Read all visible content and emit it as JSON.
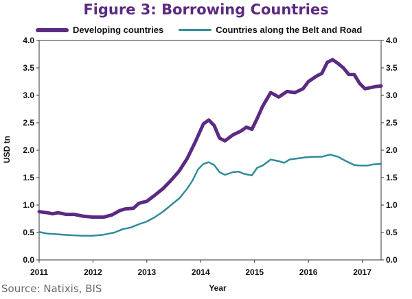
{
  "chart_data": {
    "type": "line",
    "title": "Figure 3: Borrowing Countries",
    "xlabel": "Year",
    "ylabel": "USD tn",
    "xlim": [
      2011,
      2017.35
    ],
    "ylim": [
      0,
      4
    ],
    "x_ticks": [
      "2011",
      "2012",
      "2013",
      "2014",
      "2015",
      "2016",
      "2017"
    ],
    "y_ticks": [
      "0.0",
      "0.5",
      "1.0",
      "1.5",
      "2.0",
      "2.5",
      "3.0",
      "3.5",
      "4.0"
    ],
    "dual_y_axis": true,
    "legend_position": "top",
    "series": [
      {
        "name": "Developing countries",
        "color": "#5b2a82",
        "points": [
          [
            2011.0,
            0.88
          ],
          [
            2011.15,
            0.86
          ],
          [
            2011.25,
            0.84
          ],
          [
            2011.35,
            0.86
          ],
          [
            2011.5,
            0.83
          ],
          [
            2011.65,
            0.83
          ],
          [
            2011.8,
            0.8
          ],
          [
            2012.0,
            0.78
          ],
          [
            2012.2,
            0.78
          ],
          [
            2012.35,
            0.82
          ],
          [
            2012.5,
            0.9
          ],
          [
            2012.6,
            0.93
          ],
          [
            2012.75,
            0.94
          ],
          [
            2012.85,
            1.03
          ],
          [
            2013.0,
            1.07
          ],
          [
            2013.15,
            1.18
          ],
          [
            2013.3,
            1.3
          ],
          [
            2013.45,
            1.45
          ],
          [
            2013.6,
            1.62
          ],
          [
            2013.75,
            1.85
          ],
          [
            2013.9,
            2.15
          ],
          [
            2014.05,
            2.48
          ],
          [
            2014.15,
            2.55
          ],
          [
            2014.25,
            2.45
          ],
          [
            2014.35,
            2.22
          ],
          [
            2014.45,
            2.17
          ],
          [
            2014.6,
            2.28
          ],
          [
            2014.75,
            2.35
          ],
          [
            2014.85,
            2.42
          ],
          [
            2014.95,
            2.38
          ],
          [
            2015.05,
            2.58
          ],
          [
            2015.15,
            2.8
          ],
          [
            2015.3,
            3.05
          ],
          [
            2015.45,
            2.97
          ],
          [
            2015.6,
            3.07
          ],
          [
            2015.75,
            3.05
          ],
          [
            2015.9,
            3.12
          ],
          [
            2016.0,
            3.25
          ],
          [
            2016.15,
            3.35
          ],
          [
            2016.25,
            3.4
          ],
          [
            2016.35,
            3.6
          ],
          [
            2016.45,
            3.65
          ],
          [
            2016.55,
            3.58
          ],
          [
            2016.65,
            3.5
          ],
          [
            2016.75,
            3.38
          ],
          [
            2016.85,
            3.38
          ],
          [
            2016.95,
            3.22
          ],
          [
            2017.05,
            3.12
          ],
          [
            2017.15,
            3.14
          ],
          [
            2017.25,
            3.16
          ],
          [
            2017.35,
            3.17
          ]
        ]
      },
      {
        "name": "Countries along the Belt and Road",
        "color": "#2f8c9a",
        "points": [
          [
            2011.0,
            0.51
          ],
          [
            2011.15,
            0.48
          ],
          [
            2011.3,
            0.47
          ],
          [
            2011.45,
            0.46
          ],
          [
            2011.6,
            0.45
          ],
          [
            2011.8,
            0.44
          ],
          [
            2012.0,
            0.44
          ],
          [
            2012.2,
            0.46
          ],
          [
            2012.4,
            0.5
          ],
          [
            2012.55,
            0.56
          ],
          [
            2012.7,
            0.59
          ],
          [
            2012.85,
            0.65
          ],
          [
            2013.0,
            0.7
          ],
          [
            2013.15,
            0.78
          ],
          [
            2013.3,
            0.88
          ],
          [
            2013.45,
            1.0
          ],
          [
            2013.6,
            1.12
          ],
          [
            2013.75,
            1.3
          ],
          [
            2013.85,
            1.45
          ],
          [
            2013.95,
            1.65
          ],
          [
            2014.05,
            1.75
          ],
          [
            2014.15,
            1.78
          ],
          [
            2014.25,
            1.73
          ],
          [
            2014.35,
            1.6
          ],
          [
            2014.45,
            1.55
          ],
          [
            2014.6,
            1.6
          ],
          [
            2014.7,
            1.61
          ],
          [
            2014.8,
            1.57
          ],
          [
            2014.95,
            1.54
          ],
          [
            2015.05,
            1.68
          ],
          [
            2015.15,
            1.72
          ],
          [
            2015.3,
            1.83
          ],
          [
            2015.45,
            1.8
          ],
          [
            2015.55,
            1.77
          ],
          [
            2015.65,
            1.83
          ],
          [
            2015.8,
            1.85
          ],
          [
            2015.95,
            1.87
          ],
          [
            2016.1,
            1.88
          ],
          [
            2016.25,
            1.88
          ],
          [
            2016.4,
            1.92
          ],
          [
            2016.55,
            1.88
          ],
          [
            2016.7,
            1.8
          ],
          [
            2016.85,
            1.73
          ],
          [
            2016.95,
            1.72
          ],
          [
            2017.1,
            1.72
          ],
          [
            2017.2,
            1.74
          ],
          [
            2017.35,
            1.75
          ]
        ]
      }
    ]
  },
  "source": "Source: Natixis, BIS"
}
